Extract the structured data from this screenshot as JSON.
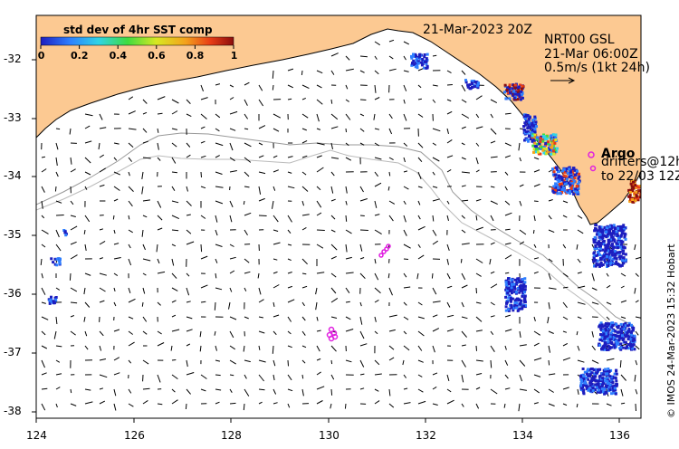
{
  "header": {
    "date": "21-Mar-2023 20Z",
    "product": "NRT00 GSL",
    "product_time": "21-Mar 06:00Z",
    "scale_label": "0.5m/s (1kt 24h)"
  },
  "colorbar": {
    "title": "std dev of 4hr SST comp",
    "ticks": [
      "0",
      "0.2",
      "0.4",
      "0.6",
      "0.8",
      "1"
    ],
    "colors": [
      "#1d1dbf",
      "#2e7fff",
      "#2fd4e6",
      "#3fdc3f",
      "#d8e822",
      "#f4a21c",
      "#e83c16",
      "#8b0d0d"
    ]
  },
  "legend": {
    "argo_label": "Argo",
    "drifters_label": "drifters@12h",
    "drifters_until": "to 22/03 12Z"
  },
  "axes": {
    "x_ticks": [
      "124",
      "126",
      "128",
      "130",
      "132",
      "134",
      "136"
    ],
    "y_ticks": [
      "-32",
      "-33",
      "-34",
      "-35",
      "-36",
      "-37",
      "-38"
    ]
  },
  "credit": "© IMOS 24-Mar-2023 15:32 Hobart",
  "style": {
    "land": "#fcc992",
    "ocean": "#ffffff",
    "argo": "#e020e0",
    "drifter": "#e020e0",
    "isobath": "#999999"
  }
}
